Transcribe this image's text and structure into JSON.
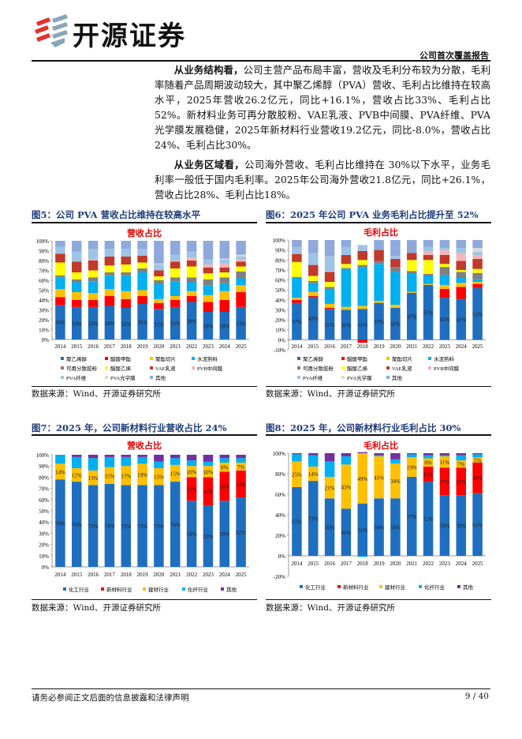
{
  "header": {
    "logo_text": "开源证券",
    "report_type": "公司首次覆盖报告"
  },
  "body": {
    "p1_lead": "从业务结构看，",
    "p1_text": "公司主营产品布局丰富，营收及毛利分布较为分散，毛利率随着产品周期波动较大，其中聚乙烯醇（PVA）营收、毛利占比维持在较高水平，2025年营收26.2亿元，同比+16.1%，营收占比33%、毛利占比52%。新材料业务可再分散胶粉、VAE乳液、PVB中间膜、PVA纤维、PVA光学膜发展稳健，2025年新材料行业营收19.2亿元，同比-8.0%，营收占比24%、毛利占比30%。",
    "p2_lead": "从业务区域看，",
    "p2_text": "公司海外营收、毛利占比维持在 30%以下水平，业务毛利率一般低于国内毛利率。2025年公司海外营收21.8亿元，同比+26.1%，营收占比28%、毛利占比18%。"
  },
  "figures": [
    {
      "heading": "图5：公司 PVA 营收占比维持在较高水平",
      "source": "数据来源：Wind、开源证券研究所"
    },
    {
      "heading": "图6：2025 年公司 PVA 业务毛利占比提升至 52%",
      "source": "数据来源：Wind、开源证券研究所"
    },
    {
      "heading": "图7：2025 年，公司新材料行业营收占比 24%",
      "source": "数据来源：Wind、开源证券研究所"
    },
    {
      "heading": "图8：2025 年，公司新材料行业毛利占比 30%",
      "source": "数据来源：Wind、开源证券研究所"
    }
  ],
  "chart_data": [
    {
      "type": "bar",
      "stacked": true,
      "title": "营收占比",
      "ylim": [
        0,
        100
      ],
      "yticks": [
        "0%",
        "10%",
        "20%",
        "30%",
        "40%",
        "50%",
        "60%",
        "70%",
        "80%",
        "90%",
        "100%"
      ],
      "categories": [
        "2014",
        "2015",
        "2016",
        "2017",
        "2018",
        "2019",
        "2020",
        "2021",
        "2022",
        "2023",
        "2024",
        "2025"
      ],
      "legend": "bottom",
      "labeled_series": [
        0
      ],
      "series": [
        {
          "name": "聚乙烯醇",
          "color": "#1f6fc0",
          "values": [
            35,
            33,
            33,
            34,
            32,
            36,
            31,
            33,
            38,
            28,
            28,
            33
          ]
        },
        {
          "name": "醋酸甲酯",
          "color": "#ff0000",
          "values": [
            8,
            7,
            7,
            10,
            9,
            8,
            6,
            7,
            6,
            10,
            12,
            15
          ]
        },
        {
          "name": "聚酯切片",
          "color": "#ffc000",
          "values": [
            8,
            8,
            7,
            7,
            8,
            6,
            4,
            4,
            5,
            7,
            9,
            7
          ]
        },
        {
          "name": "水泥熟料",
          "color": "#00b0f0",
          "values": [
            12,
            10,
            12,
            14,
            16,
            18,
            15,
            15,
            9,
            10,
            8,
            7
          ]
        },
        {
          "name": "可再分散胶粉",
          "color": "#808080",
          "values": [
            2,
            3,
            4,
            3,
            3,
            4,
            4,
            4,
            5,
            6,
            6,
            7
          ]
        },
        {
          "name": "醋酸乙烯",
          "color": "#ffff00",
          "values": [
            13,
            7,
            7,
            7,
            8,
            6,
            4,
            9,
            11,
            6,
            5,
            5
          ]
        },
        {
          "name": "VAE乳液",
          "color": "#c0392b",
          "values": [
            9,
            11,
            10,
            9,
            8,
            7,
            6,
            7,
            6,
            6,
            5,
            5
          ]
        },
        {
          "name": "PVB中间膜",
          "color": "#f4b6b6",
          "values": [
            0,
            0,
            1,
            0,
            0,
            0,
            0,
            1,
            3,
            3,
            4,
            2
          ]
        },
        {
          "name": "PVA纤维",
          "color": "#9dc3e6",
          "values": [
            7,
            10,
            11,
            8,
            8,
            7,
            6,
            6,
            6,
            5,
            4,
            3
          ]
        },
        {
          "name": "PVA光学膜",
          "color": "#d9d9d9",
          "values": [
            0,
            0,
            0,
            0,
            0,
            0,
            1,
            0,
            0,
            0,
            1,
            2
          ]
        },
        {
          "name": "其他",
          "color": "#8ea9db",
          "values": [
            6,
            11,
            8,
            8,
            8,
            8,
            23,
            14,
            11,
            19,
            18,
            14
          ]
        }
      ]
    },
    {
      "type": "bar",
      "stacked": true,
      "title": "毛利占比",
      "ylim": [
        -10,
        100
      ],
      "yticks": [
        "-10%",
        "0%",
        "10%",
        "20%",
        "30%",
        "40%",
        "50%",
        "60%",
        "70%",
        "80%",
        "90%",
        "100%"
      ],
      "categories": [
        "2014",
        "2015",
        "2016",
        "2017",
        "2018",
        "2019",
        "2020",
        "2021",
        "2022",
        "2023",
        "2024",
        "2025"
      ],
      "legend": "bottom",
      "labeled_series": [
        0
      ],
      "series": [
        {
          "name": "聚乙烯醇",
          "color": "#1f6fc0",
          "values": [
            37,
            43,
            31,
            30,
            31,
            37,
            32,
            47,
            55,
            42,
            41,
            52
          ]
        },
        {
          "name": "醋酸甲酯",
          "color": "#ff0000",
          "values": [
            3,
            1,
            1,
            0,
            -3,
            0,
            0,
            0,
            0,
            9,
            12,
            4
          ]
        },
        {
          "name": "聚酯切片",
          "color": "#ffc000",
          "values": [
            2,
            4,
            4,
            3,
            3,
            2,
            3,
            1,
            1,
            4,
            4,
            2
          ]
        },
        {
          "name": "水泥熟料",
          "color": "#00b0f0",
          "values": [
            20,
            9,
            15,
            38,
            39,
            37,
            33,
            18,
            8,
            10,
            5,
            3
          ]
        },
        {
          "name": "可再分散胶粉",
          "color": "#808080",
          "values": [
            1,
            2,
            2,
            1,
            2,
            3,
            5,
            3,
            2,
            8,
            6,
            6
          ]
        },
        {
          "name": "醋酸乙烯",
          "color": "#ffff00",
          "values": [
            15,
            5,
            5,
            4,
            5,
            0,
            0,
            11,
            14,
            3,
            2,
            4
          ]
        },
        {
          "name": "VAE乳液",
          "color": "#c0392b",
          "values": [
            8,
            11,
            10,
            9,
            9,
            11,
            8,
            7,
            5,
            9,
            9,
            10
          ]
        },
        {
          "name": "PVB中间膜",
          "color": "#f4b6b6",
          "values": [
            0,
            0,
            1,
            0,
            0,
            0,
            0,
            0,
            4,
            5,
            8,
            4
          ]
        },
        {
          "name": "PVA纤维",
          "color": "#9dc3e6",
          "values": [
            7,
            12,
            15,
            8,
            6,
            0,
            3,
            0,
            4,
            2,
            5,
            3
          ]
        },
        {
          "name": "PVA光学膜",
          "color": "#d9d9d9",
          "values": [
            0,
            0,
            0,
            0,
            0,
            0,
            0,
            0,
            0,
            0,
            0,
            4
          ]
        },
        {
          "name": "其他",
          "color": "#8ea9db",
          "values": [
            7,
            13,
            16,
            7,
            0,
            10,
            16,
            13,
            7,
            8,
            8,
            8
          ]
        }
      ]
    },
    {
      "type": "bar",
      "stacked": true,
      "title": "营收占比",
      "ylim": [
        0,
        100
      ],
      "yticks": [
        "0%",
        "10%",
        "20%",
        "30%",
        "40%",
        "50%",
        "60%",
        "70%",
        "80%",
        "90%",
        "100%"
      ],
      "categories": [
        "2014",
        "2015",
        "2016",
        "2017",
        "2018",
        "2019",
        "2020",
        "2021",
        "2022",
        "2023",
        "2024",
        "2025"
      ],
      "legend": "bottom",
      "labeled_series": [
        0,
        1,
        2
      ],
      "series": [
        {
          "name": "化工行业",
          "color": "#1f6fc0",
          "values": [
            78,
            76,
            73,
            74,
            73,
            73,
            73,
            76,
            59,
            55,
            59,
            62
          ]
        },
        {
          "name": "新材料行业",
          "color": "#ff0000",
          "values": [
            0,
            0,
            0,
            0,
            0,
            0,
            0,
            0,
            21,
            25,
            26,
            24
          ]
        },
        {
          "name": "建材行业",
          "color": "#ffc000",
          "values": [
            14,
            12,
            13,
            15,
            17,
            19,
            15,
            15,
            10,
            10,
            8,
            7
          ]
        },
        {
          "name": "化纤行业",
          "color": "#00b0f0",
          "values": [
            8,
            10,
            11,
            9,
            8,
            6,
            6,
            6,
            5,
            4,
            4,
            4
          ]
        },
        {
          "name": "其他",
          "color": "#7030a0",
          "values": [
            0,
            2,
            3,
            2,
            2,
            2,
            6,
            3,
            5,
            6,
            3,
            3
          ]
        }
      ]
    },
    {
      "type": "bar",
      "stacked": true,
      "title": "毛利占比",
      "ylim": [
        -20,
        100
      ],
      "yticks": [
        "-20%",
        "0%",
        "20%",
        "40%",
        "60%",
        "80%",
        "100%"
      ],
      "categories": [
        "2014",
        "2015",
        "2016",
        "2017",
        "2018",
        "2019",
        "2020",
        "2021",
        "2022",
        "2023",
        "2024",
        "2025"
      ],
      "legend": "bottom",
      "labeled_series": [
        0,
        1,
        2
      ],
      "series": [
        {
          "name": "化工行业",
          "color": "#1f6fc0",
          "values": [
            67,
            73,
            56,
            46,
            51,
            56,
            56,
            77,
            72,
            59,
            59,
            61
          ]
        },
        {
          "name": "新材料行业",
          "color": "#ff0000",
          "values": [
            0,
            0,
            0,
            0,
            0,
            0,
            0,
            0,
            15,
            27,
            27,
            30
          ]
        },
        {
          "name": "建材行业",
          "color": "#ffc000",
          "values": [
            25,
            14,
            21,
            43,
            49,
            41,
            34,
            19,
            8,
            11,
            7,
            5
          ]
        },
        {
          "name": "化纤行业",
          "color": "#00b0f0",
          "values": [
            7,
            11,
            15,
            8,
            -1,
            1,
            4,
            3,
            3,
            1,
            5,
            3
          ]
        },
        {
          "name": "其他",
          "color": "#7030a0",
          "values": [
            1,
            2,
            8,
            3,
            1,
            2,
            6,
            1,
            2,
            2,
            2,
            1
          ]
        }
      ]
    }
  ],
  "footer": {
    "disclaimer": "请务必参阅正文后面的信息披露和法律声明",
    "page": "9 / 40"
  }
}
